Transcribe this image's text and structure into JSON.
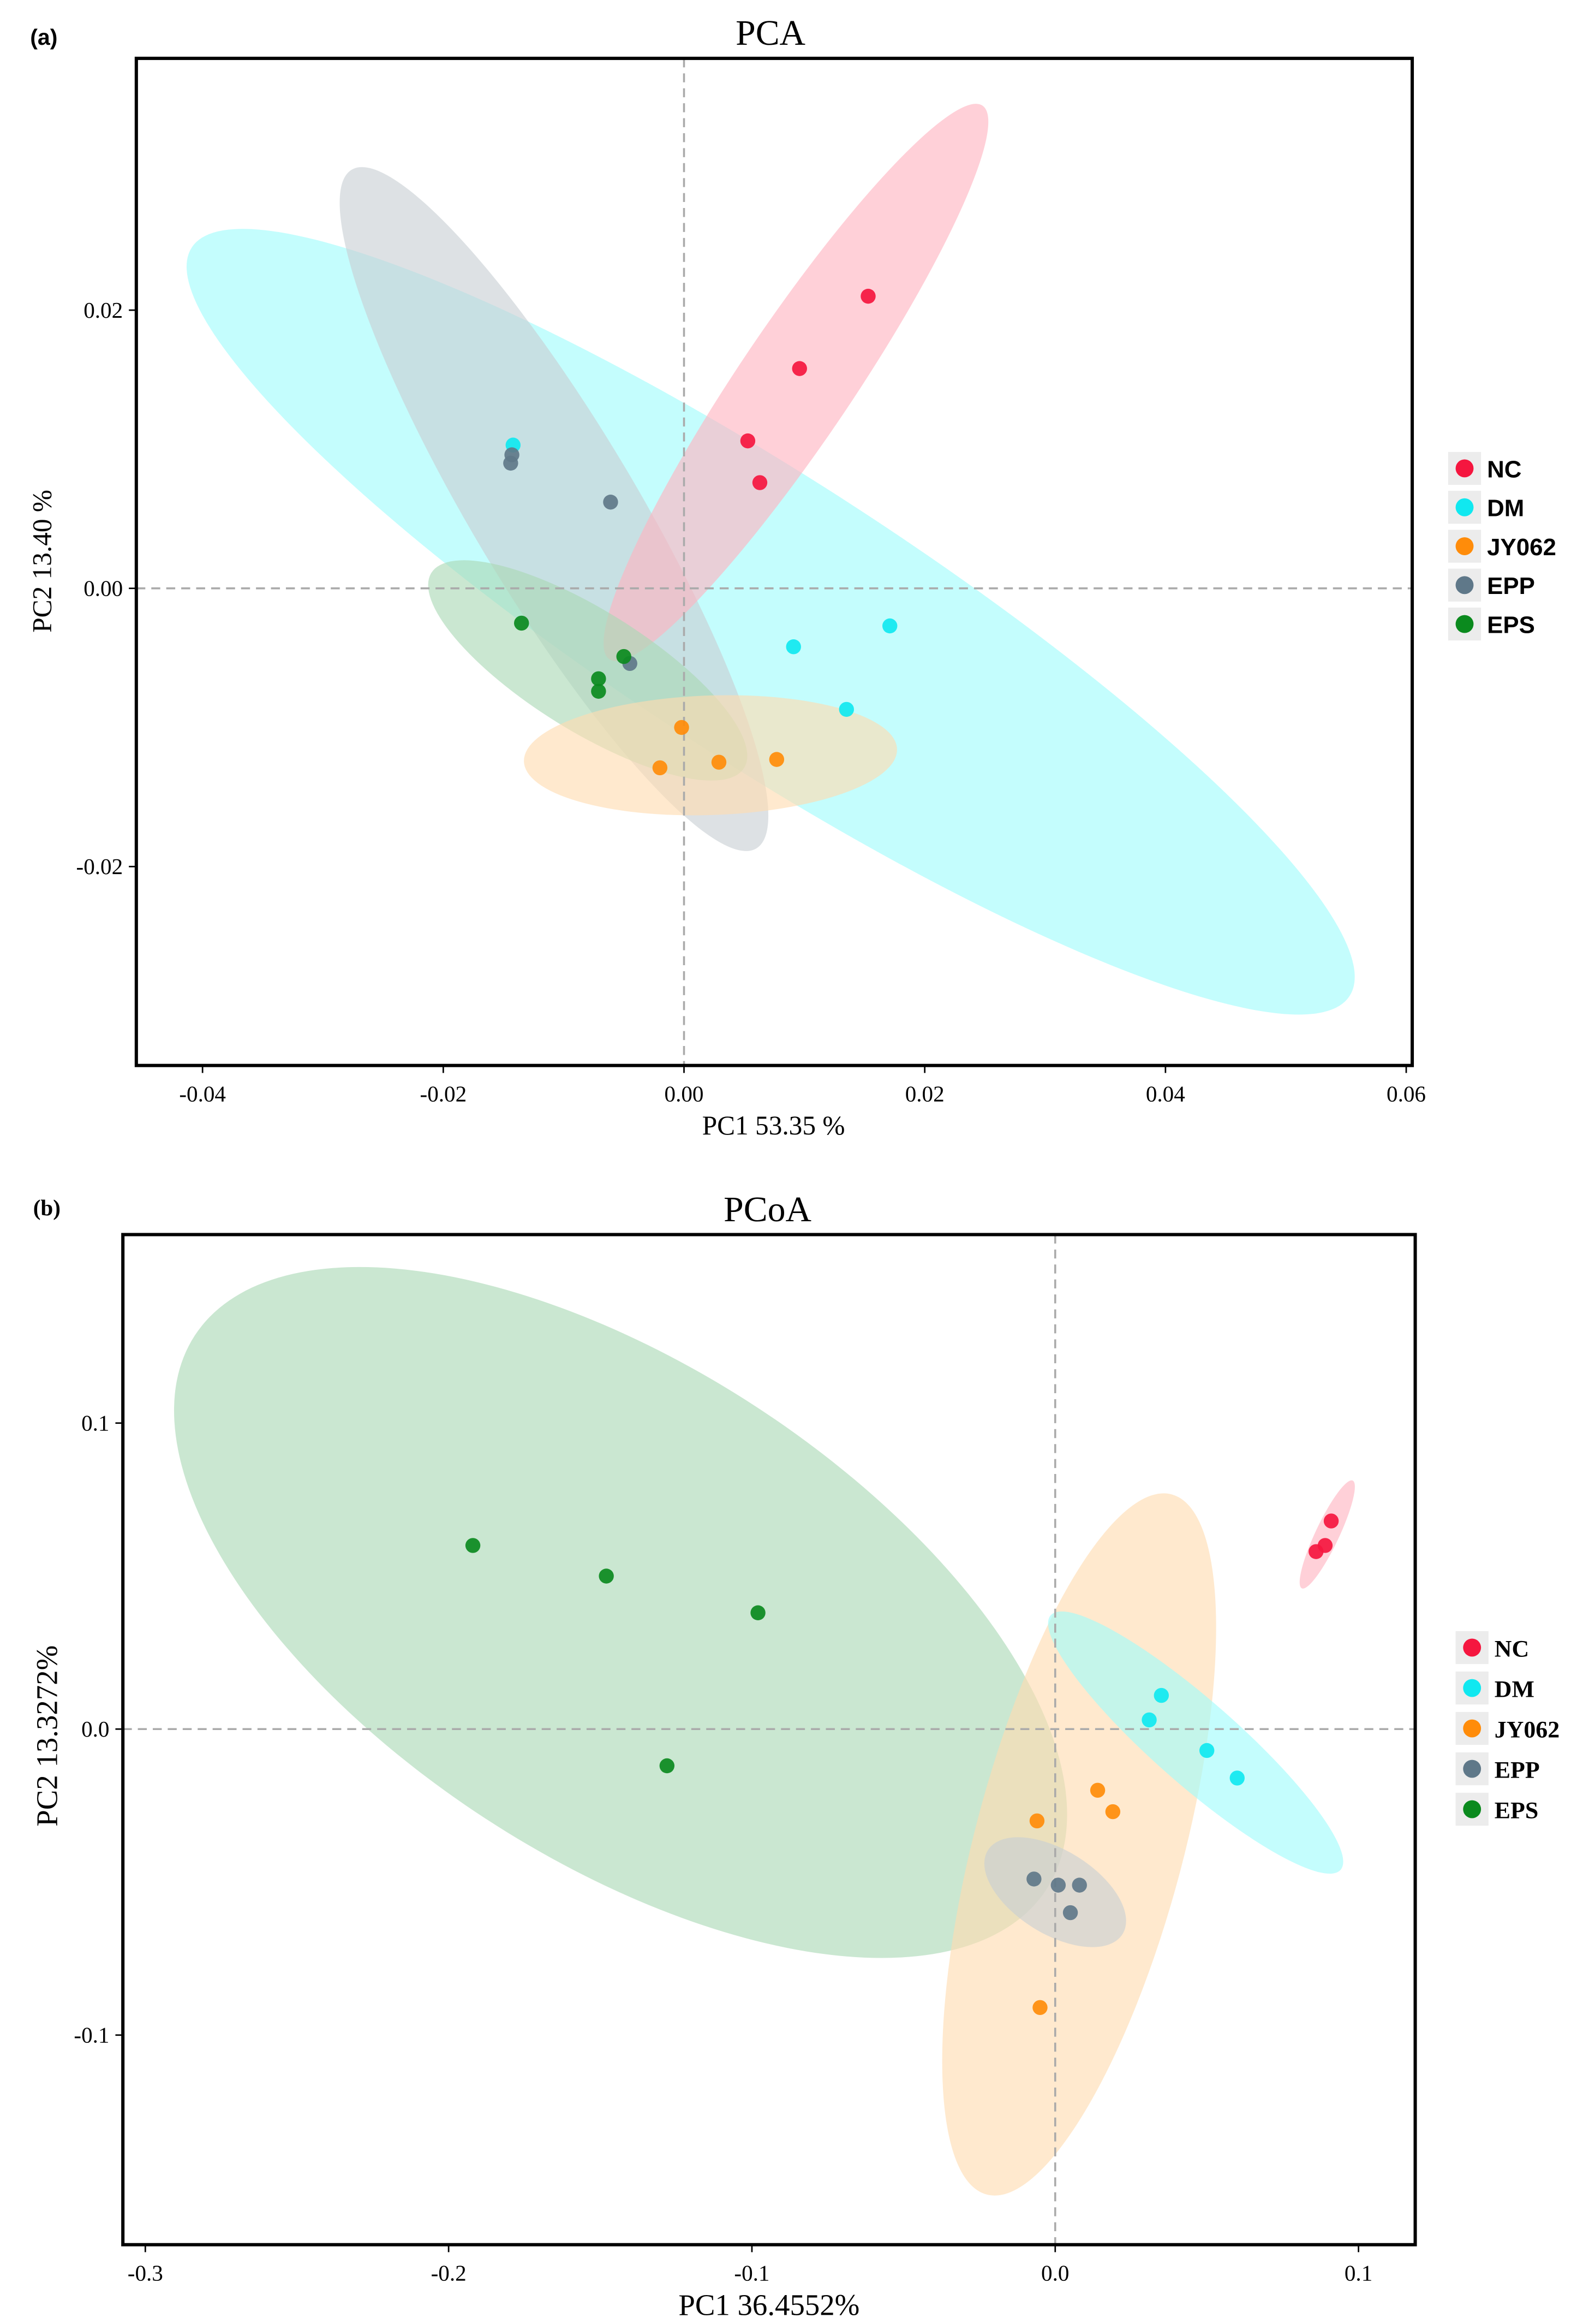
{
  "colors": {
    "NC": "#f5163f",
    "DM": "#10e8f0",
    "JY062": "#ff8c0a",
    "EPP": "#5f7889",
    "EPS": "#0b8a1e"
  },
  "ellipse_fill": {
    "NC": "#ffb3c0",
    "DM": "#9ffcfc",
    "JY062": "#ffdcb0",
    "EPP": "#c8ced4",
    "EPS": "#a9d9b4"
  },
  "chart_data": [
    {
      "type": "scatter",
      "panel_label": "(a)",
      "title": "PCA",
      "xlabel": "PC1 53.35 %",
      "ylabel": "PC2 13.40 %",
      "xlim": [
        -0.0455,
        0.0605
      ],
      "ylim": [
        -0.0343,
        0.0381
      ],
      "xticks": [
        "-0.04",
        "-0.02",
        "0.00",
        "0.02",
        "0.04",
        "0.06"
      ],
      "xtick_values": [
        -0.04,
        -0.02,
        0,
        0.02,
        0.04,
        0.06
      ],
      "yticks": [
        "0.02",
        "0.00",
        "-0.02"
      ],
      "ytick_values": [
        0.02,
        0,
        -0.02
      ],
      "reference_lines": {
        "x": 0,
        "y": 0
      },
      "legend": {
        "placement": "right",
        "entries": [
          "NC",
          "DM",
          "JY062",
          "EPP",
          "EPS"
        ]
      },
      "series": [
        {
          "name": "DM",
          "points": [
            [
              -0.0142,
              0.0103
            ],
            [
              0.0091,
              -0.0042
            ],
            [
              0.0171,
              -0.0027
            ],
            [
              0.0135,
              -0.0087
            ]
          ],
          "ellipse": {
            "center": [
              0.0072,
              -0.0024
            ],
            "major": [
              0.0481,
              -0.0269
            ],
            "minor": [
              0.0064,
              0.0086
            ]
          }
        },
        {
          "name": "EPP",
          "points": [
            [
              -0.0143,
              0.0096
            ],
            [
              -0.0144,
              0.009
            ],
            [
              -0.0061,
              0.0062
            ],
            [
              -0.0045,
              -0.0054
            ]
          ],
          "ellipse": {
            "center": [
              -0.0108,
              0.0057
            ],
            "major": [
              0.0168,
              -0.0244
            ],
            "minor": [
              -0.0059,
              -0.003
            ]
          }
        },
        {
          "name": "NC",
          "points": [
            [
              0.0153,
              0.021
            ],
            [
              0.0096,
              0.0158
            ],
            [
              0.0053,
              0.0106
            ],
            [
              0.0063,
              0.0076
            ]
          ],
          "ellipse": {
            "center": [
              0.0093,
              0.0148
            ],
            "major": [
              0.0155,
              0.0199
            ],
            "minor": [
              0.0039,
              -0.0023
            ]
          }
        },
        {
          "name": "EPS",
          "points": [
            [
              -0.0135,
              -0.0025
            ],
            [
              -0.005,
              -0.0049
            ],
            [
              -0.0071,
              -0.0065
            ],
            [
              -0.0071,
              -0.0074
            ]
          ],
          "ellipse": {
            "center": [
              -0.008,
              -0.0059
            ],
            "major": [
              0.013,
              -0.007
            ],
            "minor": [
              -0.0026,
              -0.0037
            ]
          }
        },
        {
          "name": "JY062",
          "points": [
            [
              -0.0002,
              -0.01
            ],
            [
              -0.002,
              -0.0129
            ],
            [
              0.0029,
              -0.0125
            ],
            [
              0.0077,
              -0.0123
            ]
          ],
          "ellipse": {
            "center": [
              0.0022,
              -0.012
            ],
            "major": [
              0.0155,
              0.0004
            ],
            "minor": [
              0.0,
              -0.0043
            ]
          }
        }
      ]
    },
    {
      "type": "scatter",
      "panel_label": "(b)",
      "title": "PCoA",
      "xlabel": "PC1 36.4552%",
      "ylabel": "PC2 13.3272%",
      "xlim": [
        -0.3074,
        0.1187
      ],
      "ylim": [
        -0.1685,
        0.1616
      ],
      "xticks": [
        "-0.3",
        "-0.2",
        "-0.1",
        "0.0",
        "0.1"
      ],
      "xtick_values": [
        -0.3,
        -0.2,
        -0.1,
        0,
        0.1
      ],
      "yticks": [
        "0.1",
        "0.0",
        "-0.1"
      ],
      "ytick_values": [
        0.1,
        0,
        -0.1
      ],
      "reference_lines": {
        "x": 0,
        "y": 0
      },
      "legend": {
        "placement": "right",
        "entries": [
          "NC",
          "DM",
          "JY062",
          "EPP",
          "EPS"
        ]
      },
      "series": [
        {
          "name": "EPS",
          "points": [
            [
              -0.192,
              0.06
            ],
            [
              -0.148,
              0.05
            ],
            [
              -0.098,
              0.038
            ],
            [
              -0.128,
              -0.012
            ]
          ],
          "ellipse": {
            "center": [
              -0.1433,
              0.0381
            ],
            "major": [
              0.1404,
              -0.0905
            ],
            "minor": [
              -0.0443,
              -0.0675
            ]
          }
        },
        {
          "name": "JY062",
          "points": [
            [
              0.014,
              -0.02
            ],
            [
              0.019,
              -0.027
            ],
            [
              -0.006,
              -0.03
            ],
            [
              -0.005,
              -0.091
            ]
          ],
          "ellipse": {
            "center": [
              0.0079,
              -0.0377
            ],
            "major": [
              0.0305,
              0.1144
            ],
            "minor": [
              0.0333,
              -0.0088
            ]
          }
        },
        {
          "name": "DM",
          "points": [
            [
              0.035,
              0.011
            ],
            [
              0.031,
              0.003
            ],
            [
              0.05,
              -0.007
            ],
            [
              0.06,
              -0.016
            ]
          ],
          "ellipse": {
            "center": [
              0.0463,
              -0.0044
            ],
            "major": [
              0.0478,
              -0.0416
            ],
            "minor": [
              -0.0091,
              -0.0103
            ]
          }
        },
        {
          "name": "EPP",
          "points": [
            [
              -0.007,
              -0.049
            ],
            [
              0.001,
              -0.051
            ],
            [
              0.008,
              -0.051
            ],
            [
              0.005,
              -0.06
            ]
          ],
          "ellipse": {
            "center": [
              0.0,
              -0.0533
            ],
            "major": [
              0.0222,
              -0.0137
            ],
            "minor": [
              -0.0073,
              -0.0116
            ]
          }
        },
        {
          "name": "NC",
          "points": [
            [
              0.091,
              0.068
            ],
            [
              0.089,
              0.06
            ],
            [
              0.086,
              0.058
            ]
          ],
          "ellipse": {
            "center": [
              0.0897,
              0.0636
            ],
            "major": [
              0.0084,
              0.0176
            ],
            "minor": [
              0.0035,
              -0.0017
            ]
          }
        }
      ]
    }
  ]
}
